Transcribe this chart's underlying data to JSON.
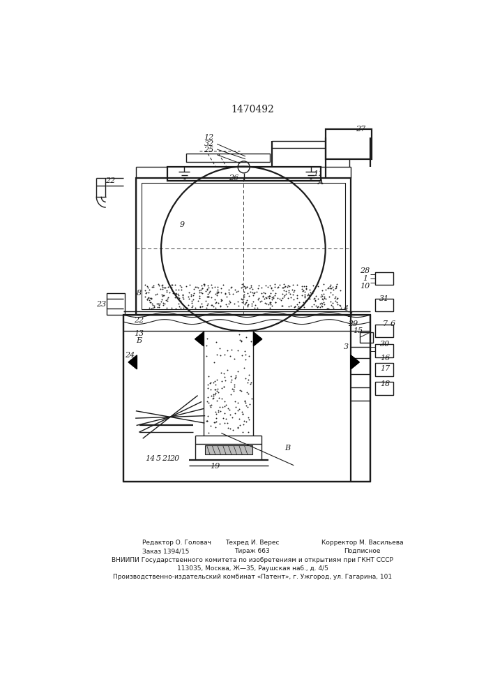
{
  "title": "1470492",
  "bg_color": "#ffffff",
  "line_color": "#1a1a1a",
  "footer_row1": [
    "Редактор О. Головач",
    "Техред И. Верес",
    "Корректор М. Васильева"
  ],
  "footer_row2": [
    "Заказ 1394/15",
    "Тираж 663",
    "Подписное"
  ],
  "footer_row3": "ВНИИПИ Государственного комитета по изобретениям и открытиям при ГКНТ СССР",
  "footer_row4": "113035, Москва, Ж—35, Раушская наб., д. 4/5",
  "footer_row5": "Производственно-издательский комбинат «Патент», г. Ужгород, ул. Гагарина, 101"
}
